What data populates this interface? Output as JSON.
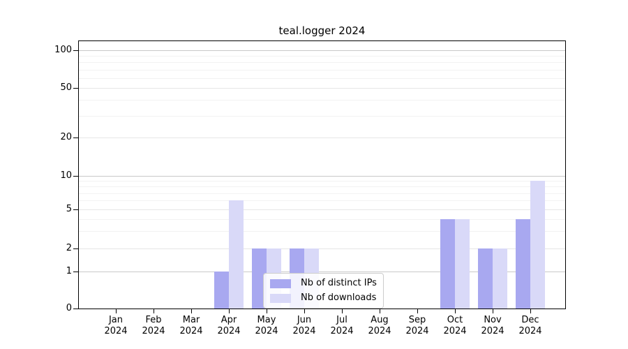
{
  "chart_data": {
    "type": "bar",
    "title": "teal.logger 2024",
    "year_label": "2024",
    "categories": [
      "Jan",
      "Feb",
      "Mar",
      "Apr",
      "May",
      "Jun",
      "Jul",
      "Aug",
      "Sep",
      "Oct",
      "Nov",
      "Dec"
    ],
    "series": [
      {
        "name": "Nb of distinct IPs",
        "color": "#a8a8f0",
        "values": [
          0,
          0,
          0,
          1,
          2,
          2,
          0,
          0,
          0,
          4,
          2,
          4
        ]
      },
      {
        "name": "Nb of downloads",
        "color": "#d9d9f8",
        "values": [
          0,
          0,
          0,
          6,
          2,
          2,
          0,
          0,
          0,
          4,
          2,
          9
        ]
      }
    ],
    "y_ticks": [
      0,
      1,
      2,
      5,
      10,
      20,
      50,
      100
    ],
    "y_minor_ticks": [
      3,
      4,
      6,
      7,
      8,
      9,
      30,
      40,
      60,
      70,
      80,
      90
    ],
    "yscale": "symlog",
    "grid": true,
    "legend_position": "lower center",
    "colors": {
      "grid_major_decade": "#c9c9c9",
      "grid_major_sub": "#e6e6e6",
      "grid_minor": "#f2f2f2",
      "axis": "#000000"
    }
  }
}
